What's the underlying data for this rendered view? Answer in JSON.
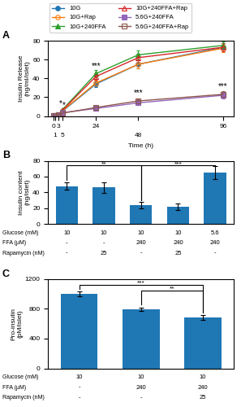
{
  "chart_data": [
    {
      "type": "line",
      "title": "A",
      "x_label": "Time (h)",
      "y_label": "Insulin Release\n(ng/ml/islet)",
      "x": [
        0,
        1,
        3,
        5,
        24,
        48,
        96
      ],
      "xlim": [
        -3,
        102
      ],
      "xticks": [
        0,
        1,
        3,
        5,
        24,
        48,
        96
      ],
      "ylim": [
        0,
        80
      ],
      "yticks": [
        0,
        20,
        40,
        60,
        80
      ],
      "legend": "upper center",
      "series": [
        {
          "name": "10G",
          "marker": "circle",
          "values": [
            0.5,
            0.8,
            1.2,
            5.0,
            34.0,
            55.0,
            73.0
          ],
          "errors": [
            0.2,
            0.3,
            0.4,
            0.8,
            3.0,
            4.0,
            4.5
          ]
        },
        {
          "name": "10G+Rap",
          "marker": "circle_open",
          "values": [
            0.5,
            0.8,
            1.2,
            5.5,
            35.0,
            55.0,
            72.0
          ],
          "errors": [
            0.2,
            0.3,
            0.4,
            0.9,
            3.0,
            4.0,
            4.5
          ]
        },
        {
          "name": "10G+240FFA",
          "marker": "triangle",
          "values": [
            0.5,
            0.8,
            1.5,
            6.5,
            45.0,
            65.0,
            75.0
          ],
          "errors": [
            0.2,
            0.3,
            0.5,
            1.0,
            3.5,
            4.5,
            4.0
          ]
        },
        {
          "name": "10G+240FFA+Rap",
          "marker": "triangle_open",
          "values": [
            0.5,
            0.8,
            1.5,
            6.0,
            42.0,
            62.0,
            73.0
          ],
          "errors": [
            0.2,
            0.3,
            0.5,
            0.9,
            3.5,
            4.5,
            4.0
          ]
        },
        {
          "name": "5.6G+240FFA",
          "marker": "square",
          "values": [
            0.5,
            0.8,
            1.0,
            3.5,
            8.0,
            14.0,
            22.0
          ],
          "errors": [
            0.2,
            0.2,
            0.3,
            0.5,
            1.5,
            2.0,
            3.0
          ]
        },
        {
          "name": "5.6G+240FFA+Rap",
          "marker": "square_open",
          "values": [
            0.5,
            0.8,
            1.0,
            3.0,
            9.0,
            16.0,
            23.0
          ],
          "errors": [
            0.2,
            0.2,
            0.3,
            0.5,
            1.5,
            2.0,
            3.0
          ]
        }
      ],
      "annotations": [
        {
          "text": "*",
          "x": 5,
          "y": 9
        },
        {
          "text": "*",
          "x": 5,
          "y": 7.2
        },
        {
          "text": "***",
          "x": 24,
          "y": 49
        },
        {
          "text": "***",
          "x": 48,
          "y": 20
        },
        {
          "text": "***",
          "x": 96,
          "y": 27
        }
      ]
    },
    {
      "type": "bar",
      "title": "B",
      "y_label": "Insulin content\n(ng/islet)",
      "categories": [
        null,
        null,
        null,
        null,
        null
      ],
      "values": [
        48,
        46,
        24,
        22,
        65
      ],
      "errors": [
        5,
        7,
        4,
        4,
        8
      ],
      "ylim": [
        0,
        80
      ],
      "yticks": [
        0,
        20,
        40,
        60,
        80
      ],
      "tick_labels": "y",
      "table": [
        {
          "label": "Glucose (mM)",
          "values": [
            "10",
            "10",
            "10",
            "10",
            "5.6"
          ]
        },
        {
          "label": "FFA (μM)",
          "values": [
            "-",
            "-",
            "240",
            "240",
            "240"
          ]
        },
        {
          "label": "Rapamycin (nM)",
          "values": [
            "-",
            "25",
            "-",
            "25",
            "-"
          ]
        }
      ],
      "brackets": [
        {
          "from": 0,
          "to": 2,
          "y": 74,
          "text": "**"
        },
        {
          "from": 2,
          "to": 4,
          "y": 74,
          "text": "***"
        }
      ]
    },
    {
      "type": "bar",
      "title": "C",
      "y_label": "Pro-insulin\n(pM/islet)",
      "categories": [
        null,
        null,
        null
      ],
      "values": [
        1000,
        790,
        680
      ],
      "errors": [
        30,
        25,
        30
      ],
      "ylim": [
        0,
        1200
      ],
      "yticks": [
        0,
        400,
        800,
        1200
      ],
      "tick_labels": "y",
      "table": [
        {
          "label": "Glucose (mM)",
          "values": [
            "10",
            "10",
            "10"
          ]
        },
        {
          "label": "FFA (μM)",
          "values": [
            "-",
            "240",
            "240"
          ]
        },
        {
          "label": "Rapamycin (nM)",
          "values": [
            "-",
            "-",
            "25"
          ]
        }
      ],
      "brackets": [
        {
          "from": 0,
          "to": 2,
          "y": 1120,
          "text": "***"
        },
        {
          "from": 1,
          "to": 2,
          "y": 1040,
          "text": "**"
        }
      ]
    }
  ]
}
